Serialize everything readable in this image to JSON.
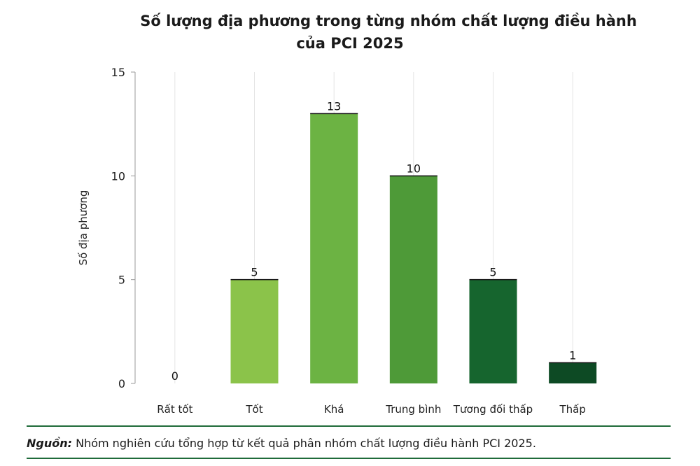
{
  "chart_data": {
    "type": "bar",
    "title": "Số lượng địa phương trong từng nhóm chất lượng điều hành",
    "title_line2": "của PCI 2025",
    "xlabel": "",
    "ylabel": "Số địa phương",
    "ylim": [
      0,
      15
    ],
    "yticks": [
      0,
      5,
      10,
      15
    ],
    "grid": true,
    "categories": [
      "Rất tốt",
      "Tốt",
      "Khá",
      "Trung bình",
      "Tương đối thấp",
      "Thấp"
    ],
    "values": [
      0,
      5,
      13,
      10,
      5,
      1
    ],
    "colors": [
      "#8bc34a",
      "#8bc34a",
      "#6cb343",
      "#4e9a38",
      "#16652e",
      "#0d4a24"
    ]
  },
  "source": {
    "label": "Nguồn:",
    "text": "Nhóm nghiên cứu tổng hợp từ kết quả phân nhóm chất lượng điều hành PCI 2025."
  }
}
